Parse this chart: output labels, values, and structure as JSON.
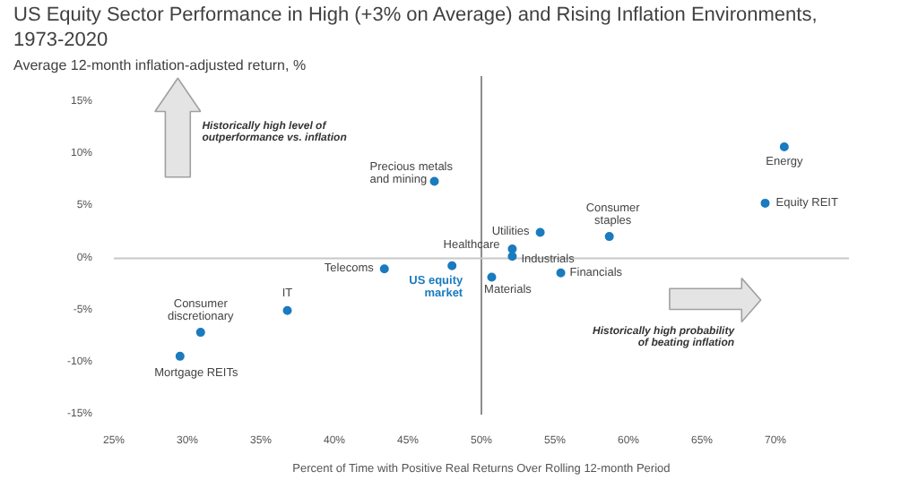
{
  "chart_data": {
    "type": "scatter",
    "title": "US Equity Sector Performance in High (+3% on Average) and Rising Inflation Environments, 1973-2020",
    "subtitle": "Average 12-month inflation-adjusted return, %",
    "xlabel": "Percent of Time with Positive Real Returns Over Rolling 12-month Period",
    "series": [
      {
        "color": "#1a7bbf",
        "x": [
          46.8,
          43.4,
          36.8,
          30.9,
          29.5,
          70.6,
          69.3,
          58.7,
          54.0,
          52.1,
          52.1,
          50.7,
          55.4
        ],
        "values": [
          7.4,
          -1.0,
          -5.0,
          -7.1,
          -9.4,
          10.7,
          5.3,
          2.1,
          2.5,
          0.9,
          0.2,
          -1.8,
          -1.4
        ]
      },
      {
        "name": "US equity market",
        "color": "#1a7bbf",
        "x": [
          48.0
        ],
        "values": [
          -0.7
        ]
      }
    ],
    "annotations": [
      {
        "text": "Precious metals and mining",
        "x": 46.8,
        "y": 7.4
      },
      {
        "text": "Telecoms",
        "x": 43.4,
        "y": -1.0
      },
      {
        "text": "IT",
        "x": 36.8,
        "y": -5.0
      },
      {
        "text": "Consumer discretionary",
        "x": 30.9,
        "y": -7.1
      },
      {
        "text": "Mortgage REITs",
        "x": 29.5,
        "y": -9.4
      },
      {
        "text": "Energy",
        "x": 70.6,
        "y": 10.7
      },
      {
        "text": "Equity REIT",
        "x": 69.3,
        "y": 5.3
      },
      {
        "text": "Consumer staples",
        "x": 58.7,
        "y": 2.1
      },
      {
        "text": "Utilities",
        "x": 54.0,
        "y": 2.5
      },
      {
        "text": "Healthcare",
        "x": 52.1,
        "y": 0.9
      },
      {
        "text": "Industrials",
        "x": 52.1,
        "y": 0.2
      },
      {
        "text": "Materials",
        "x": 50.7,
        "y": -1.8
      },
      {
        "text": "Financials",
        "x": 55.4,
        "y": -1.4
      },
      "Historically high level of outperformance vs. inflation",
      "Historically high probability of beating inflation"
    ],
    "ref_lines": [
      {
        "axis": "x",
        "value": 50,
        "color": "#8c8c8c"
      },
      {
        "axis": "y",
        "value": 0,
        "color": "#c8c8c8"
      }
    ],
    "xlim": [
      25,
      75
    ],
    "ylim": [
      -15,
      17.5
    ],
    "xticks": [
      {
        "value": 25,
        "label": "25%"
      },
      {
        "value": 30,
        "label": "30%"
      },
      {
        "value": 35,
        "label": "35%"
      },
      {
        "value": 40,
        "label": "40%"
      },
      {
        "value": 45,
        "label": "45%"
      },
      {
        "value": 50,
        "label": "50%"
      },
      {
        "value": 55,
        "label": "55%"
      },
      {
        "value": 60,
        "label": "60%"
      },
      {
        "value": 65,
        "label": "65%"
      },
      {
        "value": 70,
        "label": "70%"
      }
    ],
    "yticks": [
      {
        "value": -15,
        "label": "-15%"
      },
      {
        "value": -10,
        "label": "-10%"
      },
      {
        "value": -5,
        "label": "-5%"
      },
      {
        "value": 0,
        "label": "0%"
      },
      {
        "value": 5,
        "label": "5%"
      },
      {
        "value": 10,
        "label": "10%"
      },
      {
        "value": 15,
        "label": "15%"
      }
    ],
    "marker": "circle",
    "grid": false,
    "legend": false
  }
}
